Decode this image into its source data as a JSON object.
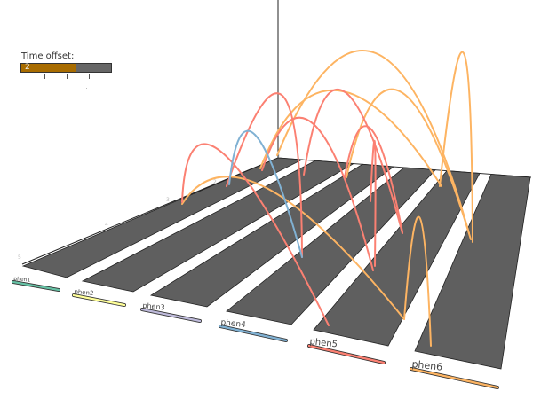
{
  "time_offset": {
    "label": "Time offset:",
    "value": "2",
    "fraction": 0.6
  },
  "axis_ticks": [
    "5",
    "4",
    "3",
    "2",
    "1"
  ],
  "tracks": [
    {
      "label": "phen1",
      "color": "#66c2a5"
    },
    {
      "label": "phen2",
      "color": "#ffff99"
    },
    {
      "label": "phen3",
      "color": "#bebada"
    },
    {
      "label": "phen4",
      "color": "#80b1d3"
    },
    {
      "label": "phen5",
      "color": "#fb8072"
    },
    {
      "label": "phen6",
      "color": "#fdb462"
    }
  ],
  "colors": {
    "strip": "#5f5f5f",
    "arc_phen4": "#80b1d3",
    "arc_phen5": "#fb8072",
    "arc_phen6": "#fdb462"
  }
}
